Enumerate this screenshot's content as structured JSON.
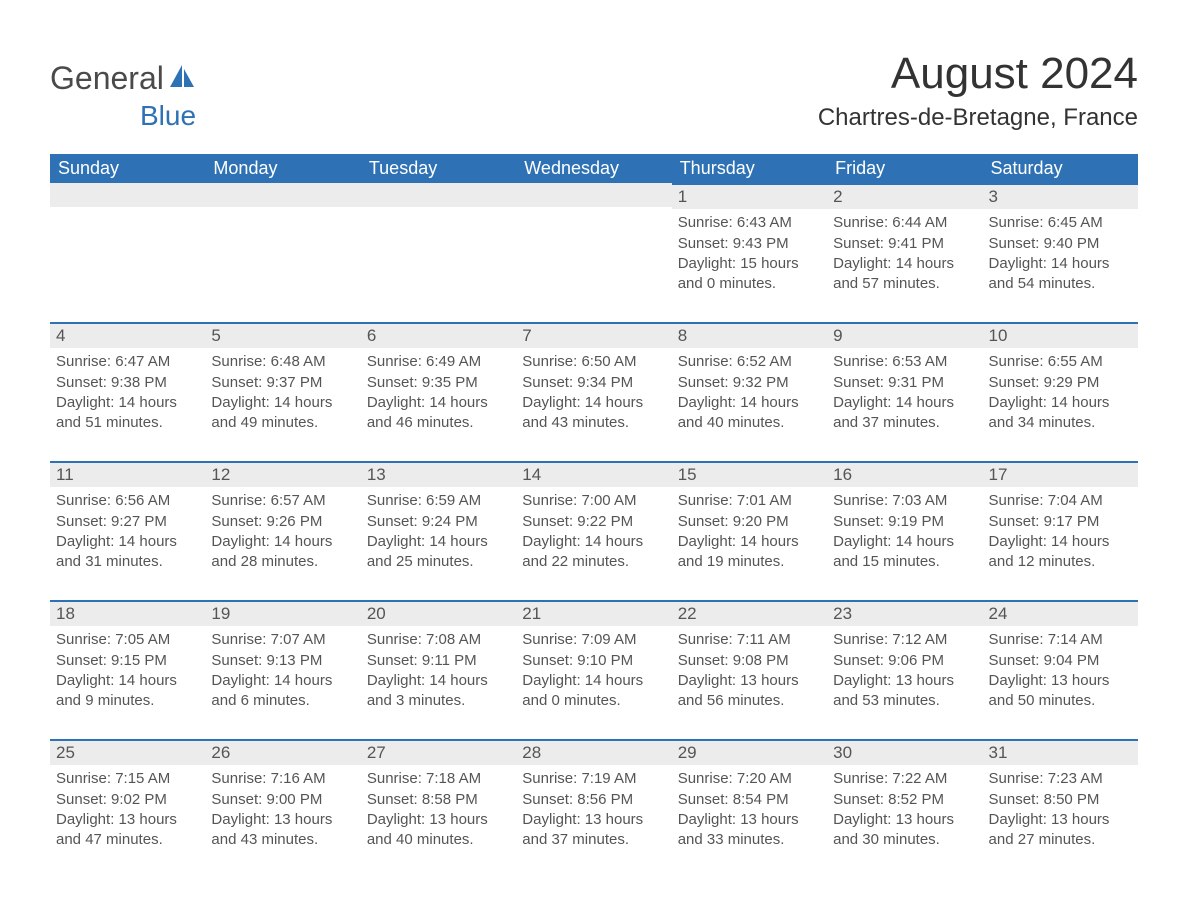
{
  "logo": {
    "text1": "General",
    "text2": "Blue"
  },
  "title": "August 2024",
  "subtitle": "Chartres-de-Bretagne, France",
  "colors": {
    "header_bg": "#2e72b5",
    "header_text": "#ffffff",
    "daynum_bg": "#ececec",
    "rule": "#2e72b5",
    "body_text": "#555555",
    "page_bg": "#ffffff",
    "title_text": "#333333"
  },
  "typography": {
    "title_fontsize": 44,
    "subtitle_fontsize": 24,
    "dayheader_fontsize": 18,
    "daynum_fontsize": 17,
    "body_fontsize": 15,
    "font_family": "Arial"
  },
  "layout": {
    "columns": 7,
    "rows": 5,
    "leading_blanks": 4
  },
  "day_headers": [
    "Sunday",
    "Monday",
    "Tuesday",
    "Wednesday",
    "Thursday",
    "Friday",
    "Saturday"
  ],
  "days": [
    {
      "n": 1,
      "sunrise": "6:43 AM",
      "sunset": "9:43 PM",
      "daylight": "15 hours and 0 minutes."
    },
    {
      "n": 2,
      "sunrise": "6:44 AM",
      "sunset": "9:41 PM",
      "daylight": "14 hours and 57 minutes."
    },
    {
      "n": 3,
      "sunrise": "6:45 AM",
      "sunset": "9:40 PM",
      "daylight": "14 hours and 54 minutes."
    },
    {
      "n": 4,
      "sunrise": "6:47 AM",
      "sunset": "9:38 PM",
      "daylight": "14 hours and 51 minutes."
    },
    {
      "n": 5,
      "sunrise": "6:48 AM",
      "sunset": "9:37 PM",
      "daylight": "14 hours and 49 minutes."
    },
    {
      "n": 6,
      "sunrise": "6:49 AM",
      "sunset": "9:35 PM",
      "daylight": "14 hours and 46 minutes."
    },
    {
      "n": 7,
      "sunrise": "6:50 AM",
      "sunset": "9:34 PM",
      "daylight": "14 hours and 43 minutes."
    },
    {
      "n": 8,
      "sunrise": "6:52 AM",
      "sunset": "9:32 PM",
      "daylight": "14 hours and 40 minutes."
    },
    {
      "n": 9,
      "sunrise": "6:53 AM",
      "sunset": "9:31 PM",
      "daylight": "14 hours and 37 minutes."
    },
    {
      "n": 10,
      "sunrise": "6:55 AM",
      "sunset": "9:29 PM",
      "daylight": "14 hours and 34 minutes."
    },
    {
      "n": 11,
      "sunrise": "6:56 AM",
      "sunset": "9:27 PM",
      "daylight": "14 hours and 31 minutes."
    },
    {
      "n": 12,
      "sunrise": "6:57 AM",
      "sunset": "9:26 PM",
      "daylight": "14 hours and 28 minutes."
    },
    {
      "n": 13,
      "sunrise": "6:59 AM",
      "sunset": "9:24 PM",
      "daylight": "14 hours and 25 minutes."
    },
    {
      "n": 14,
      "sunrise": "7:00 AM",
      "sunset": "9:22 PM",
      "daylight": "14 hours and 22 minutes."
    },
    {
      "n": 15,
      "sunrise": "7:01 AM",
      "sunset": "9:20 PM",
      "daylight": "14 hours and 19 minutes."
    },
    {
      "n": 16,
      "sunrise": "7:03 AM",
      "sunset": "9:19 PM",
      "daylight": "14 hours and 15 minutes."
    },
    {
      "n": 17,
      "sunrise": "7:04 AM",
      "sunset": "9:17 PM",
      "daylight": "14 hours and 12 minutes."
    },
    {
      "n": 18,
      "sunrise": "7:05 AM",
      "sunset": "9:15 PM",
      "daylight": "14 hours and 9 minutes."
    },
    {
      "n": 19,
      "sunrise": "7:07 AM",
      "sunset": "9:13 PM",
      "daylight": "14 hours and 6 minutes."
    },
    {
      "n": 20,
      "sunrise": "7:08 AM",
      "sunset": "9:11 PM",
      "daylight": "14 hours and 3 minutes."
    },
    {
      "n": 21,
      "sunrise": "7:09 AM",
      "sunset": "9:10 PM",
      "daylight": "14 hours and 0 minutes."
    },
    {
      "n": 22,
      "sunrise": "7:11 AM",
      "sunset": "9:08 PM",
      "daylight": "13 hours and 56 minutes."
    },
    {
      "n": 23,
      "sunrise": "7:12 AM",
      "sunset": "9:06 PM",
      "daylight": "13 hours and 53 minutes."
    },
    {
      "n": 24,
      "sunrise": "7:14 AM",
      "sunset": "9:04 PM",
      "daylight": "13 hours and 50 minutes."
    },
    {
      "n": 25,
      "sunrise": "7:15 AM",
      "sunset": "9:02 PM",
      "daylight": "13 hours and 47 minutes."
    },
    {
      "n": 26,
      "sunrise": "7:16 AM",
      "sunset": "9:00 PM",
      "daylight": "13 hours and 43 minutes."
    },
    {
      "n": 27,
      "sunrise": "7:18 AM",
      "sunset": "8:58 PM",
      "daylight": "13 hours and 40 minutes."
    },
    {
      "n": 28,
      "sunrise": "7:19 AM",
      "sunset": "8:56 PM",
      "daylight": "13 hours and 37 minutes."
    },
    {
      "n": 29,
      "sunrise": "7:20 AM",
      "sunset": "8:54 PM",
      "daylight": "13 hours and 33 minutes."
    },
    {
      "n": 30,
      "sunrise": "7:22 AM",
      "sunset": "8:52 PM",
      "daylight": "13 hours and 30 minutes."
    },
    {
      "n": 31,
      "sunrise": "7:23 AM",
      "sunset": "8:50 PM",
      "daylight": "13 hours and 27 minutes."
    }
  ],
  "labels": {
    "sunrise": "Sunrise:",
    "sunset": "Sunset:",
    "daylight": "Daylight:"
  }
}
